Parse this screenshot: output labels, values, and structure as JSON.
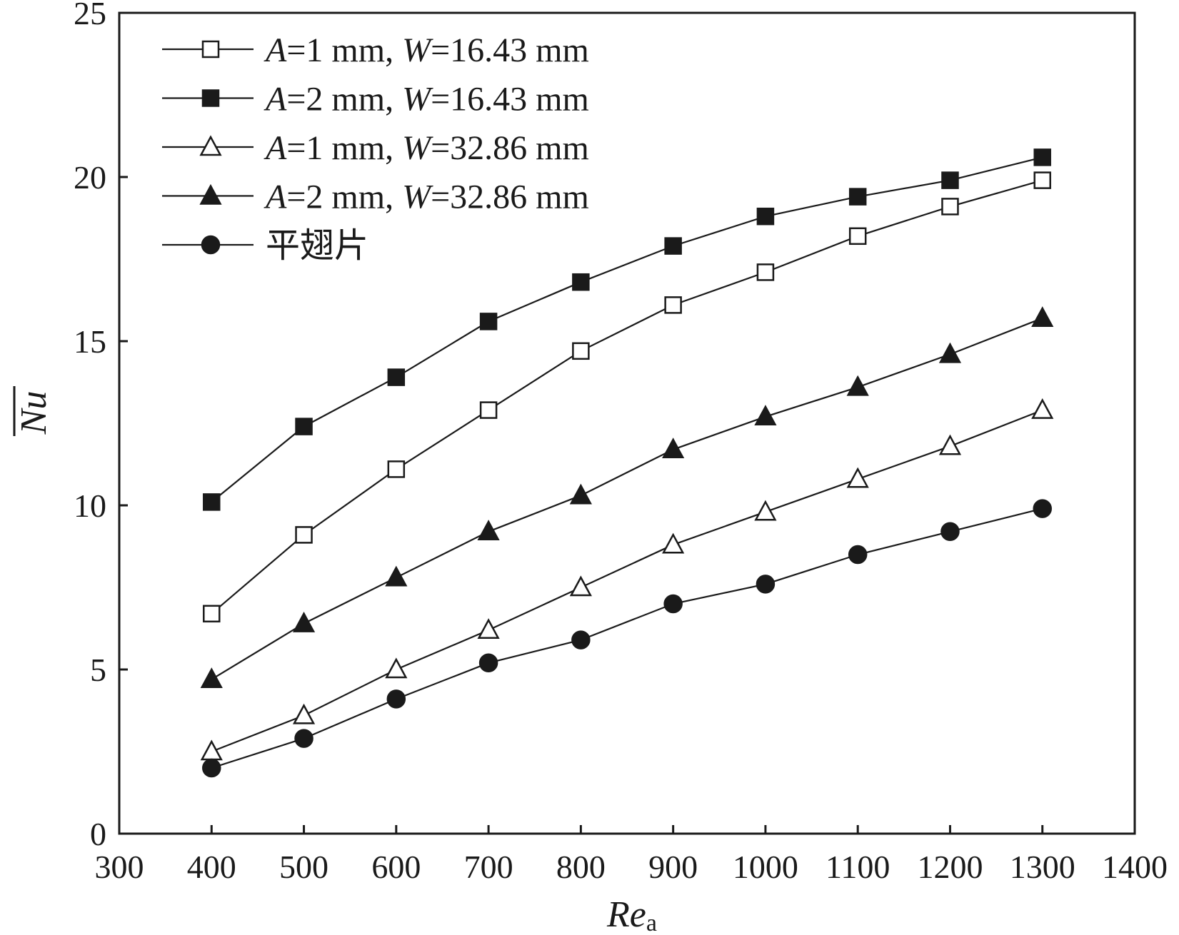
{
  "chart_data": {
    "type": "line",
    "x": [
      400,
      500,
      600,
      700,
      800,
      900,
      1000,
      1100,
      1200,
      1300
    ],
    "xlim": [
      300,
      1400
    ],
    "ylim": [
      0,
      25
    ],
    "xticks": [
      300,
      400,
      500,
      600,
      700,
      800,
      900,
      1000,
      1100,
      1200,
      1300,
      1400
    ],
    "yticks": [
      0,
      5,
      10,
      15,
      20,
      25
    ],
    "xlabel": "Re",
    "xlabel_subscript": "a",
    "ylabel": "Nu",
    "ylabel_overline": true,
    "grid": false,
    "legend_position": "top-left",
    "series": [
      {
        "name": "A=1 mm, W=16.43 mm",
        "label_parts": {
          "v1": "A",
          "t1": "=1 mm, ",
          "v2": "W",
          "t2": "=16.43 mm"
        },
        "marker": "square-open",
        "values": [
          6.7,
          9.1,
          11.1,
          12.9,
          14.7,
          16.1,
          17.1,
          18.2,
          19.1,
          19.9
        ]
      },
      {
        "name": "A=2 mm, W=16.43 mm",
        "label_parts": {
          "v1": "A",
          "t1": "=2 mm, ",
          "v2": "W",
          "t2": "=16.43 mm"
        },
        "marker": "square-filled",
        "values": [
          10.1,
          12.4,
          13.9,
          15.6,
          16.8,
          17.9,
          18.8,
          19.4,
          19.9,
          20.6
        ]
      },
      {
        "name": "A=1 mm, W=32.86 mm",
        "label_parts": {
          "v1": "A",
          "t1": "=1 mm, ",
          "v2": "W",
          "t2": "=32.86 mm"
        },
        "marker": "triangle-open",
        "values": [
          2.5,
          3.6,
          5.0,
          6.2,
          7.5,
          8.8,
          9.8,
          10.8,
          11.8,
          12.9
        ]
      },
      {
        "name": "A=2 mm, W=32.86 mm",
        "label_parts": {
          "v1": "A",
          "t1": "=2 mm, ",
          "v2": "W",
          "t2": "=32.86 mm"
        },
        "marker": "triangle-filled",
        "values": [
          4.7,
          6.4,
          7.8,
          9.2,
          10.3,
          11.7,
          12.7,
          13.6,
          14.6,
          15.7
        ]
      },
      {
        "name": "平翅片",
        "label_parts": {
          "v1": "",
          "t1": "平翅片",
          "v2": "",
          "t2": ""
        },
        "marker": "circle-filled",
        "values": [
          2.0,
          2.9,
          4.1,
          5.2,
          5.9,
          7.0,
          7.6,
          8.5,
          9.2,
          9.9
        ]
      }
    ]
  }
}
